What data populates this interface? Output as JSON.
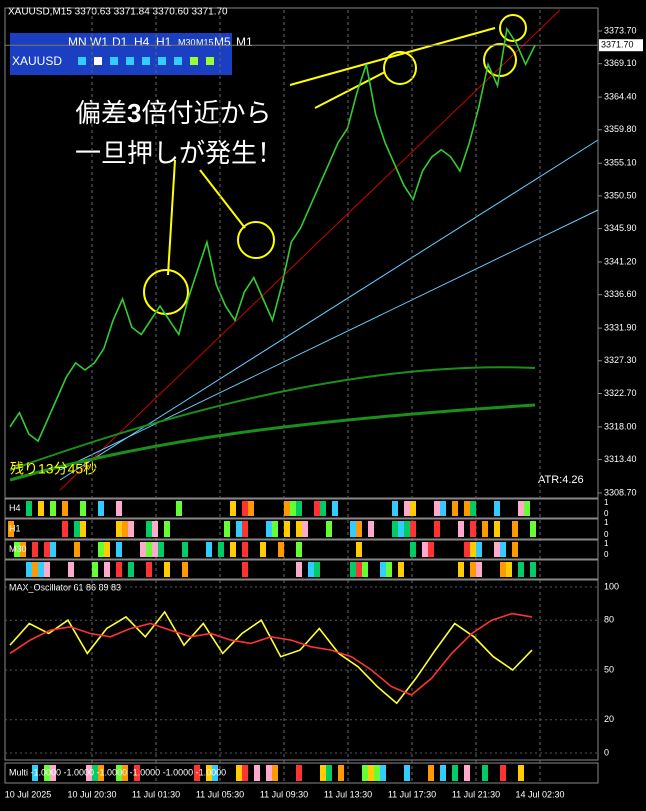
{
  "header": "XAUUSD,M15  3370.63 3371.84 3370.60 3371.70",
  "timeframes": [
    "MN",
    "W1",
    "D1",
    "H4",
    "H1",
    "M30",
    "M15",
    "M5",
    "M1"
  ],
  "symbol": "XAUUSD",
  "annotation": {
    "line1a": "偏差",
    "line1b": "3",
    "line1c": "倍付近から",
    "line2": "一旦押しが発生！"
  },
  "timer": "残り13分45秒",
  "atr": "ATR:4.26",
  "panels": {
    "h4": "H4",
    "h1": "H1",
    "m30": "M30",
    "multi": "Multi -1.0000 -1.0000 -1.0000 -1.0000 -1.0000 -1.0000",
    "osc": "MAX_Oscillator 61 86 89 83",
    "one": "1",
    "zero": "0"
  },
  "chart_data": [
    {
      "type": "line",
      "x_labels": [
        "10 Jul 2025",
        "10 Jul 20:30",
        "11 Jul 01:30",
        "11 Jul 05:30",
        "11 Jul 09:30",
        "11 Jul 13:30",
        "11 Jul 17:30",
        "11 Jul 21:30",
        "14 Jul 02:30"
      ],
      "ylim": [
        3308.7,
        3373.7
      ],
      "yticks": [
        {
          "value": 3373.7,
          "label": "3373.70"
        },
        {
          "value": 3369.1,
          "label": "3369.10"
        },
        {
          "value": 3364.4,
          "label": "3364.40"
        },
        {
          "value": 3359.8,
          "label": "3359.80"
        },
        {
          "value": 3355.1,
          "label": "3355.10"
        },
        {
          "value": 3350.5,
          "label": "3350.50"
        },
        {
          "value": 3345.9,
          "label": "3345.90"
        },
        {
          "value": 3341.2,
          "label": "3341.20"
        },
        {
          "value": 3336.6,
          "label": "3336.60"
        },
        {
          "value": 3331.9,
          "label": "3331.90"
        },
        {
          "value": 3327.3,
          "label": "3327.30"
        },
        {
          "value": 3322.7,
          "label": "3322.70"
        },
        {
          "value": 3318,
          "label": "3318.00"
        },
        {
          "value": 3313.4,
          "label": "3313.40"
        },
        {
          "value": 3308.7,
          "label": "3308.70"
        }
      ],
      "current": {
        "value": 3371.7,
        "label": "3371.70"
      },
      "series": [
        {
          "color": "#33cc33",
          "values": [
            3318,
            3320,
            3317,
            3316,
            3319,
            3322,
            3325,
            3327,
            3326,
            3327,
            3329,
            3333,
            3336,
            3332,
            3331,
            3333,
            3335,
            3333,
            3331,
            3336,
            3340,
            3344,
            3338,
            3335,
            3333,
            3337,
            3339,
            3336,
            3333,
            3338,
            3344,
            3346,
            3349,
            3352,
            3355,
            3358,
            3360,
            3365,
            3369,
            3362,
            3358,
            3355,
            3352,
            3350,
            3354,
            3356,
            3357,
            3356,
            3354,
            3358,
            3363,
            3369,
            3366,
            3374,
            3372,
            3369,
            3371.7
          ]
        }
      ]
    },
    {
      "type": "line",
      "ylim": [
        0,
        100
      ],
      "yticks": [
        100,
        80,
        50,
        20,
        0
      ],
      "series": [
        {
          "color": "#ffff33",
          "values": [
            65,
            78,
            72,
            80,
            60,
            75,
            82,
            70,
            85,
            65,
            78,
            60,
            72,
            80,
            58,
            62,
            75,
            60,
            52,
            40,
            30,
            45,
            62,
            78,
            70,
            58,
            50,
            62
          ]
        },
        {
          "color": "#ff3333",
          "values": [
            60,
            68,
            74,
            76,
            72,
            70,
            75,
            78,
            74,
            70,
            72,
            68,
            66,
            70,
            68,
            64,
            62,
            58,
            50,
            40,
            35,
            45,
            60,
            72,
            80,
            84,
            82
          ]
        }
      ]
    }
  ]
}
